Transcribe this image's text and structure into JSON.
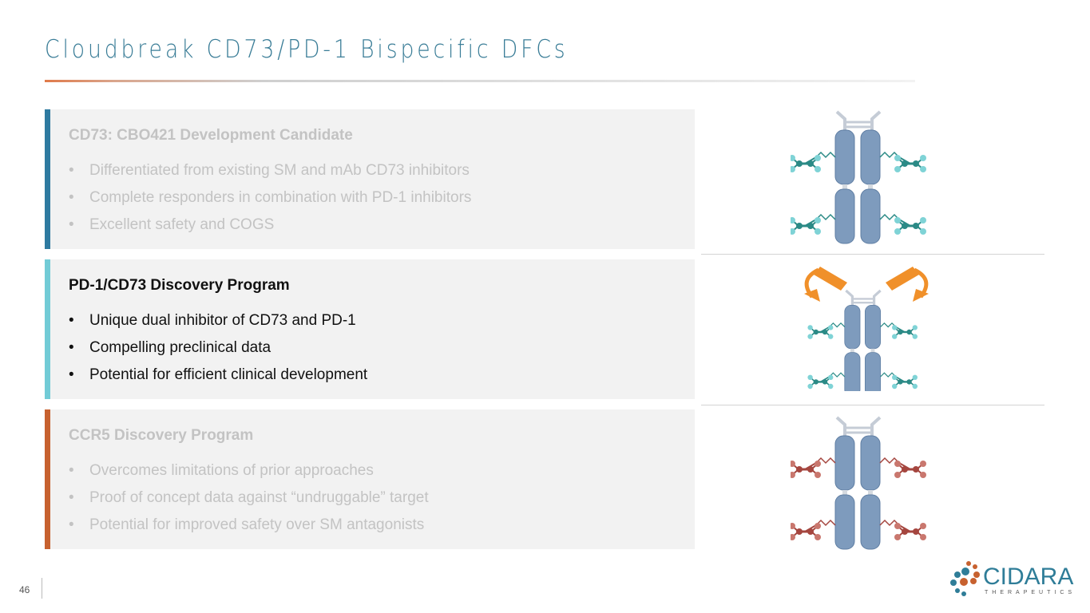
{
  "title": "Cloudbreak CD73/PD-1 Bispecific DFCs",
  "panels": [
    {
      "heading": "CD73: CBO421 Development Candidate",
      "state": "faded",
      "accent": "#2e7aa0",
      "bullets": [
        "Differentiated from existing SM and mAb CD73 inhibitors",
        "Complete responders in combination with PD-1 inhibitors",
        "Excellent safety and COGS"
      ]
    },
    {
      "heading": "PD-1/CD73 Discovery Program",
      "state": "active",
      "accent": "#72cbd6",
      "bullets": [
        "Unique dual inhibitor of CD73 and PD-1",
        "Compelling preclinical data",
        "Potential for efficient clinical development"
      ]
    },
    {
      "heading": "CCR5 Discovery Program",
      "state": "faded",
      "accent": "#c7612f",
      "bullets": [
        "Overcomes limitations of prior approaches",
        "Proof of concept data against “undruggable” target",
        "Potential for improved safety over SM antagonists"
      ]
    }
  ],
  "bullet_char": "•",
  "page_number": "46",
  "logo": {
    "name": "CIDARA",
    "sub": "THERAPEUTICS"
  },
  "colors": {
    "teal_molecule": "#2b8a86",
    "red_molecule": "#a5463f",
    "arrow": "#f0902a",
    "cylinder": "#7e9bbd"
  }
}
